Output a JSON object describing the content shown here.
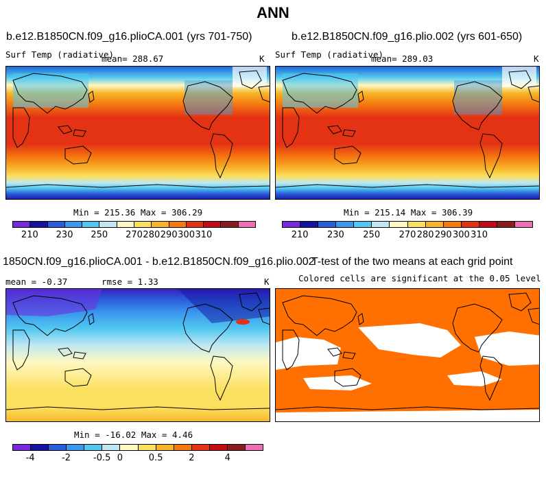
{
  "main_title": "ANN",
  "panels": {
    "p1": {
      "title": "b.e12.B1850CN.f09_g16.plioCA.001 (yrs 701-750)",
      "variable": "Surf Temp (radiative)",
      "stat": "mean= 288.67",
      "units": "K",
      "minmax": "Min = 215.36 Max = 306.29"
    },
    "p2": {
      "title": "b.e12.B1850CN.f09_g16.plio.002 (yrs 601-650)",
      "variable": "Surf Temp (radiative)",
      "stat": "mean= 289.03",
      "units": "K",
      "minmax": "Min = 215.14 Max = 306.39"
    },
    "p3": {
      "title": "1850CN.f09_g16.plioCA.001 - b.e12.B1850CN.f09_g16.plio.002",
      "stat_mean": "mean =  -0.37",
      "stat_rmse": "rmse =   1.33",
      "units": "K",
      "minmax": "Min = -16.02 Max =   4.46"
    },
    "p4": {
      "title": "T-test of the two means at each grid point",
      "subtitle": "Colored cells are significant at the 0.05 level"
    }
  },
  "colorbar_abs": {
    "colors": [
      "#7a28e0",
      "#1414a0",
      "#2a5ed8",
      "#3a98ee",
      "#52c8f0",
      "#bfe7f2",
      "#fff8c0",
      "#fbe060",
      "#f6b428",
      "#f57a10",
      "#e43214",
      "#c40a14",
      "#8a1c20",
      "#ee70b4"
    ],
    "labels": [
      "210",
      "230",
      "250",
      "270",
      "280",
      "290",
      "300",
      "310"
    ]
  },
  "colorbar_diff": {
    "colors": [
      "#7a28e0",
      "#1414a0",
      "#2a5ed8",
      "#3a98ee",
      "#52c8f0",
      "#bfe7f2",
      "#fff8c0",
      "#fbe060",
      "#f6b428",
      "#f57a10",
      "#e43214",
      "#c40a14",
      "#8a1c20",
      "#ee70b4"
    ],
    "labels": [
      "-4",
      "-2",
      "-0.5",
      "0",
      "0.5",
      "2",
      "4"
    ]
  },
  "colors": {
    "significant": "#ff7000",
    "insignificant": "#ffffff",
    "coast": "#000000"
  }
}
